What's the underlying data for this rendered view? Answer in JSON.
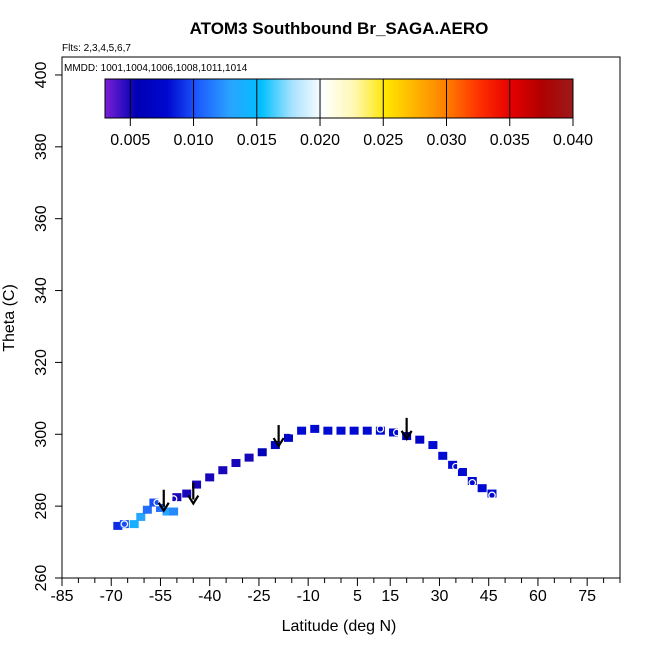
{
  "chart_data": {
    "type": "heatmap",
    "title": "ATOM3 Southbound Br_SAGA.AERO",
    "annotations": [
      "Flts: 2,3,4,5,6,7",
      "MMDD: 1001,1004,1006,1008,1011,1014"
    ],
    "xlabel": "Latitude (deg N)",
    "ylabel": "Theta (C)",
    "xlim": [
      -85,
      85
    ],
    "ylim": [
      260,
      405
    ],
    "xticks": [
      -85,
      -70,
      -55,
      -40,
      -25,
      -10,
      5,
      15,
      30,
      45,
      60,
      75
    ],
    "yticks": [
      260,
      280,
      300,
      320,
      340,
      360,
      380,
      400
    ],
    "colorbar": {
      "min": 0.003,
      "max": 0.04,
      "ticks": [
        0.005,
        0.01,
        0.015,
        0.02,
        0.025,
        0.03,
        0.035,
        0.04
      ],
      "tick_labels": [
        "0.005",
        "0.010",
        "0.015",
        "0.020",
        "0.025",
        "0.030",
        "0.035",
        "0.040"
      ],
      "colors": [
        "#7b1fd6",
        "#0000b3",
        "#0008d0",
        "#1e5cff",
        "#2aa3ff",
        "#00bfff",
        "#a8e2ff",
        "#ffffff",
        "#fff8b0",
        "#ffe600",
        "#ffb000",
        "#ff7a00",
        "#ff3000",
        "#e60000",
        "#b00000",
        "#9b1a1a"
      ]
    },
    "cells": [
      {
        "lat": -68,
        "theta": 274.5,
        "value": 0.009
      },
      {
        "lat": -66,
        "theta": 275.0,
        "value": 0.01
      },
      {
        "lat": -63,
        "theta": 275.0,
        "value": 0.014
      },
      {
        "lat": -61,
        "theta": 277.0,
        "value": 0.013
      },
      {
        "lat": -59,
        "theta": 279.0,
        "value": 0.011
      },
      {
        "lat": -57,
        "theta": 281.0,
        "value": 0.01
      },
      {
        "lat": -55,
        "theta": 279.5,
        "value": 0.011
      },
      {
        "lat": -53,
        "theta": 278.5,
        "value": 0.013
      },
      {
        "lat": -51,
        "theta": 278.5,
        "value": 0.012
      },
      {
        "lat": -50,
        "theta": 282.5,
        "value": 0.005
      },
      {
        "lat": -47,
        "theta": 283.5,
        "value": 0.005
      },
      {
        "lat": -44,
        "theta": 286.0,
        "value": 0.005
      },
      {
        "lat": -40,
        "theta": 288.0,
        "value": 0.005
      },
      {
        "lat": -36,
        "theta": 290.0,
        "value": 0.005
      },
      {
        "lat": -32,
        "theta": 292.0,
        "value": 0.005
      },
      {
        "lat": -28,
        "theta": 293.5,
        "value": 0.005
      },
      {
        "lat": -24,
        "theta": 295.0,
        "value": 0.006
      },
      {
        "lat": -20,
        "theta": 297.0,
        "value": 0.007
      },
      {
        "lat": -16,
        "theta": 299.0,
        "value": 0.007
      },
      {
        "lat": -12,
        "theta": 301.0,
        "value": 0.008
      },
      {
        "lat": -8,
        "theta": 301.5,
        "value": 0.008
      },
      {
        "lat": -4,
        "theta": 301.0,
        "value": 0.008
      },
      {
        "lat": 0,
        "theta": 301.0,
        "value": 0.008
      },
      {
        "lat": 4,
        "theta": 301.0,
        "value": 0.008
      },
      {
        "lat": 8,
        "theta": 301.0,
        "value": 0.008
      },
      {
        "lat": 12,
        "theta": 301.0,
        "value": 0.008
      },
      {
        "lat": 16,
        "theta": 300.5,
        "value": 0.008
      },
      {
        "lat": 20,
        "theta": 299.5,
        "value": 0.007
      },
      {
        "lat": 24,
        "theta": 298.5,
        "value": 0.007
      },
      {
        "lat": 28,
        "theta": 297.0,
        "value": 0.008
      },
      {
        "lat": 31,
        "theta": 294.0,
        "value": 0.008
      },
      {
        "lat": 34,
        "theta": 291.5,
        "value": 0.008
      },
      {
        "lat": 37,
        "theta": 289.5,
        "value": 0.008
      },
      {
        "lat": 40,
        "theta": 287.0,
        "value": 0.008
      },
      {
        "lat": 43,
        "theta": 285.0,
        "value": 0.008
      },
      {
        "lat": 46,
        "theta": 283.5,
        "value": 0.008
      }
    ],
    "markers": [
      {
        "lat": -66,
        "theta": 275.0
      },
      {
        "lat": -56,
        "theta": 281.0
      },
      {
        "lat": -51,
        "theta": 282.0
      },
      {
        "lat": -15,
        "theta": 301.0
      },
      {
        "lat": 12,
        "theta": 301.5
      },
      {
        "lat": 17,
        "theta": 300.5
      },
      {
        "lat": 35,
        "theta": 291.0
      },
      {
        "lat": 40,
        "theta": 286.5
      },
      {
        "lat": 46,
        "theta": 283.0
      }
    ],
    "arrows": [
      {
        "lat": -54,
        "theta": 279.0
      },
      {
        "lat": -45,
        "theta": 281.0
      },
      {
        "lat": -19,
        "theta": 297.0
      },
      {
        "lat": 20,
        "theta": 299.0
      }
    ]
  }
}
